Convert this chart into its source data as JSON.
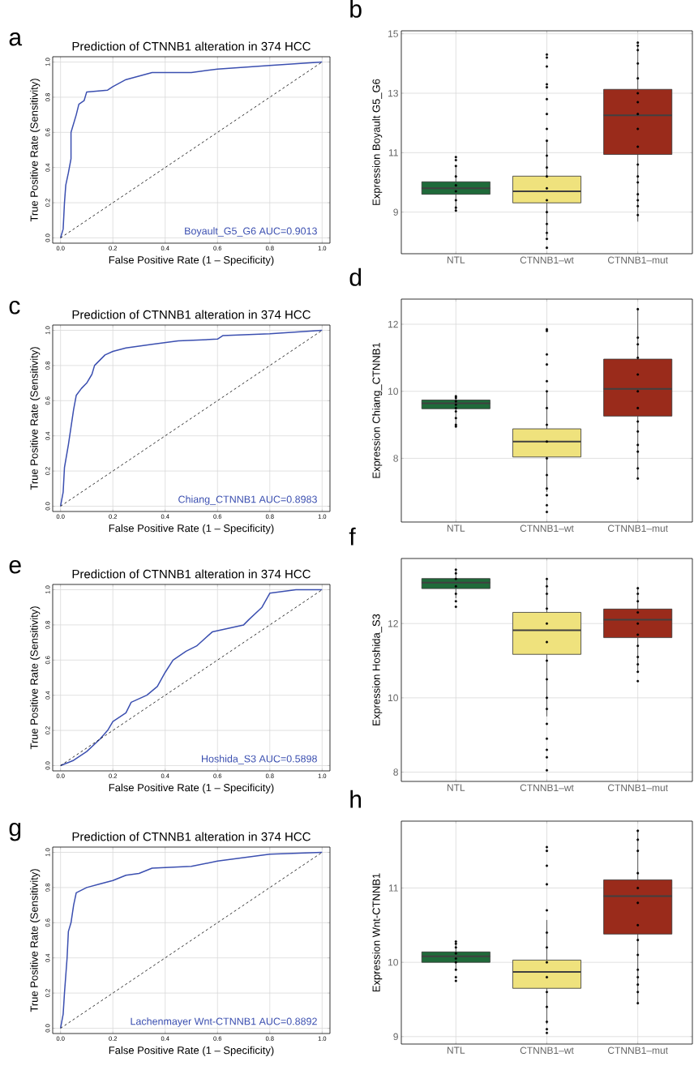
{
  "chart_data": [
    {
      "type": "line",
      "title": "Prediction of CTNNB1 alteration in 374 HCC",
      "xlabel": "False Positive Rate (1 – Specificity)",
      "ylabel": "True Positive Rate (Sensitivity)",
      "annotations": [
        "a",
        "Boyault_G5_G6 AUC=0.9013"
      ],
      "xlim": [
        -0.03,
        1.03
      ],
      "ylim": [
        -0.03,
        1.03
      ],
      "xticks": [
        {
          "value": 0,
          "label": "0.0"
        },
        {
          "value": 0.2,
          "label": "0.2"
        },
        {
          "value": 0.4,
          "label": "0.4"
        },
        {
          "value": 0.6,
          "label": "0.6"
        },
        {
          "value": 0.8,
          "label": "0.8"
        },
        {
          "value": 1,
          "label": "1.0"
        }
      ],
      "yticks": [
        {
          "value": 0,
          "label": "0.0"
        },
        {
          "value": 0.2,
          "label": "0.2"
        },
        {
          "value": 0.4,
          "label": "0.4"
        },
        {
          "value": 0.6,
          "label": "0.6"
        },
        {
          "value": 0.8,
          "label": "0.8"
        },
        {
          "value": 1,
          "label": "1.0"
        }
      ],
      "grid": true,
      "series": [
        {
          "color": "#3b4fb0",
          "x": [
            0,
            0.01,
            0.015,
            0.02,
            0.03,
            0.04,
            0.04,
            0.05,
            0.06,
            0.07,
            0.09,
            0.1,
            0.18,
            0.2,
            0.25,
            0.3,
            0.35,
            0.5,
            0.6,
            0.8,
            0.9,
            1
          ],
          "values": [
            0,
            0.05,
            0.2,
            0.3,
            0.37,
            0.45,
            0.6,
            0.65,
            0.7,
            0.76,
            0.78,
            0.83,
            0.84,
            0.86,
            0.9,
            0.92,
            0.94,
            0.94,
            0.96,
            0.98,
            0.99,
            1
          ]
        },
        {
          "color": "#000000",
          "line_style": "dashed",
          "x": [
            0,
            1
          ],
          "values": [
            0,
            1
          ]
        }
      ]
    },
    {
      "type": "box",
      "ylabel": "Expression Boyault G5_G6",
      "categories": [
        "NTL",
        "CTNNB1–wt",
        "CTNNB1–mut"
      ],
      "ylim": [
        7.6,
        15.1
      ],
      "yticks": [
        9,
        11,
        13,
        15
      ],
      "grid": true,
      "series": [
        {
          "type": "box",
          "colors": [
            "#1f6a3a",
            "#efe27d",
            "#9a2b1b"
          ],
          "boxes": [
            {
              "low": 9.05,
              "q1": 9.6,
              "median": 9.8,
              "q3": 10.02,
              "high": 10.55
            },
            {
              "low": 8.17,
              "q1": 9.31,
              "median": 9.7,
              "q3": 10.21,
              "high": 11.41
            },
            {
              "low": 8.68,
              "q1": 10.94,
              "median": 12.26,
              "q3": 13.13,
              "high": 14.6
            }
          ]
        },
        {
          "type": "scatter",
          "color": "#000000",
          "x": [
            "NTL",
            "NTL",
            "NTL",
            "NTL",
            "NTL",
            "NTL",
            "NTL",
            "NTL",
            "NTL",
            "CTNNB1–wt",
            "CTNNB1–wt",
            "CTNNB1–wt",
            "CTNNB1–wt",
            "CTNNB1–wt",
            "CTNNB1–wt",
            "CTNNB1–wt",
            "CTNNB1–wt",
            "CTNNB1–wt",
            "CTNNB1–wt",
            "CTNNB1–wt",
            "CTNNB1–wt",
            "CTNNB1–wt",
            "CTNNB1–wt",
            "CTNNB1–wt",
            "CTNNB1–wt",
            "CTNNB1–wt",
            "CTNNB1–wt",
            "CTNNB1–wt",
            "CTNNB1–mut",
            "CTNNB1–mut",
            "CTNNB1–mut",
            "CTNNB1–mut",
            "CTNNB1–mut",
            "CTNNB1–mut",
            "CTNNB1–mut",
            "CTNNB1–mut",
            "CTNNB1–mut",
            "CTNNB1–mut",
            "CTNNB1–mut",
            "CTNNB1–mut",
            "CTNNB1–mut",
            "CTNNB1–mut",
            "CTNNB1–mut",
            "CTNNB1–mut",
            "CTNNB1–mut"
          ],
          "values": [
            10.85,
            10.75,
            10.55,
            10.2,
            9.9,
            9.7,
            9.4,
            9.05,
            9.15,
            14.3,
            14.2,
            13.9,
            13.3,
            13.2,
            12.8,
            12.3,
            11.8,
            11.4,
            10.9,
            10.5,
            10.2,
            9.8,
            9.4,
            9.0,
            8.6,
            8.3,
            8.1,
            7.8,
            14.7,
            14.6,
            14.45,
            14.0,
            13.5,
            13.0,
            12.7,
            12.3,
            11.8,
            11.2,
            10.6,
            10.2,
            10.0,
            9.6,
            9.4,
            9.2,
            8.9
          ]
        }
      ],
      "annotations": [
        "b"
      ]
    },
    {
      "type": "line",
      "title": "Prediction of CTNNB1 alteration in 374 HCC",
      "xlabel": "False Positive Rate (1 – Specificity)",
      "ylabel": "True Positive Rate (Sensitivity)",
      "annotations": [
        "c",
        "Chiang_CTNNB1 AUC=0.8983"
      ],
      "xlim": [
        -0.03,
        1.03
      ],
      "ylim": [
        -0.03,
        1.03
      ],
      "xticks": [
        {
          "value": 0,
          "label": "0.0"
        },
        {
          "value": 0.2,
          "label": "0.2"
        },
        {
          "value": 0.4,
          "label": "0.4"
        },
        {
          "value": 0.6,
          "label": "0.6"
        },
        {
          "value": 0.8,
          "label": "0.8"
        },
        {
          "value": 1,
          "label": "1.0"
        }
      ],
      "yticks": [
        {
          "value": 0,
          "label": "0.0"
        },
        {
          "value": 0.2,
          "label": "0.2"
        },
        {
          "value": 0.4,
          "label": "0.4"
        },
        {
          "value": 0.6,
          "label": "0.6"
        },
        {
          "value": 0.8,
          "label": "0.8"
        },
        {
          "value": 1,
          "label": "1.0"
        }
      ],
      "grid": true,
      "series": [
        {
          "color": "#3b4fb0",
          "x": [
            0,
            0.01,
            0.015,
            0.03,
            0.04,
            0.05,
            0.06,
            0.08,
            0.1,
            0.12,
            0.13,
            0.17,
            0.2,
            0.25,
            0.35,
            0.45,
            0.6,
            0.62,
            0.8,
            1
          ],
          "values": [
            0,
            0.08,
            0.22,
            0.35,
            0.45,
            0.55,
            0.63,
            0.67,
            0.7,
            0.75,
            0.8,
            0.86,
            0.88,
            0.9,
            0.92,
            0.94,
            0.95,
            0.97,
            0.98,
            1
          ]
        },
        {
          "color": "#000000",
          "line_style": "dashed",
          "x": [
            0,
            1
          ],
          "values": [
            0,
            1
          ]
        }
      ]
    },
    {
      "type": "box",
      "ylabel": "Expression Chiang_CTNNB1",
      "categories": [
        "NTL",
        "CTNNB1–wt",
        "CTNNB1–mut"
      ],
      "ylim": [
        6.1,
        12.75
      ],
      "yticks": [
        8,
        10,
        12
      ],
      "grid": true,
      "series": [
        {
          "type": "box",
          "colors": [
            "#1f6a3a",
            "#efe27d",
            "#9a2b1b"
          ],
          "boxes": [
            {
              "low": 9.0,
              "q1": 9.48,
              "median": 9.64,
              "q3": 9.74,
              "high": 9.85
            },
            {
              "low": 7.0,
              "q1": 8.04,
              "median": 8.5,
              "q3": 8.88,
              "high": 9.97
            },
            {
              "low": 7.36,
              "q1": 9.26,
              "median": 10.07,
              "q3": 10.96,
              "high": 12.46
            }
          ]
        },
        {
          "type": "scatter",
          "color": "#000000",
          "x": [
            "NTL",
            "NTL",
            "NTL",
            "NTL",
            "NTL",
            "NTL",
            "NTL",
            "NTL",
            "NTL",
            "CTNNB1–wt",
            "CTNNB1–wt",
            "CTNNB1–wt",
            "CTNNB1–wt",
            "CTNNB1–wt",
            "CTNNB1–wt",
            "CTNNB1–wt",
            "CTNNB1–wt",
            "CTNNB1–wt",
            "CTNNB1–wt",
            "CTNNB1–wt",
            "CTNNB1–wt",
            "CTNNB1–wt",
            "CTNNB1–wt",
            "CTNNB1–wt",
            "CTNNB1–mut",
            "CTNNB1–mut",
            "CTNNB1–mut",
            "CTNNB1–mut",
            "CTNNB1–mut",
            "CTNNB1–mut",
            "CTNNB1–mut",
            "CTNNB1–mut",
            "CTNNB1–mut",
            "CTNNB1–mut",
            "CTNNB1–mut",
            "CTNNB1–mut",
            "CTNNB1–mut"
          ],
          "values": [
            9.85,
            9.8,
            9.7,
            9.6,
            9.5,
            9.4,
            9.2,
            9.0,
            8.95,
            11.85,
            11.8,
            11.1,
            10.8,
            10.3,
            10.0,
            9.5,
            9.0,
            8.5,
            8.0,
            7.5,
            7.1,
            6.9,
            6.6,
            6.4,
            12.45,
            11.6,
            11.4,
            11.0,
            10.5,
            10.0,
            9.5,
            9.1,
            8.8,
            8.4,
            8.2,
            7.7,
            7.4
          ]
        }
      ],
      "annotations": [
        "d"
      ]
    },
    {
      "type": "line",
      "title": "Prediction of CTNNB1 alteration in 374 HCC",
      "xlabel": "False Positive Rate (1 – Specificity)",
      "ylabel": "True Positive Rate (Sensitivity)",
      "annotations": [
        "e",
        "Hoshida_S3 AUC=0.5898"
      ],
      "xlim": [
        -0.03,
        1.03
      ],
      "ylim": [
        -0.03,
        1.03
      ],
      "xticks": [
        {
          "value": 0,
          "label": "0.0"
        },
        {
          "value": 0.2,
          "label": "0.2"
        },
        {
          "value": 0.4,
          "label": "0.4"
        },
        {
          "value": 0.6,
          "label": "0.6"
        },
        {
          "value": 0.8,
          "label": "0.8"
        },
        {
          "value": 1,
          "label": "1.0"
        }
      ],
      "yticks": [
        {
          "value": 0,
          "label": "0.0"
        },
        {
          "value": 0.2,
          "label": "0.2"
        },
        {
          "value": 0.4,
          "label": "0.4"
        },
        {
          "value": 0.6,
          "label": "0.6"
        },
        {
          "value": 0.8,
          "label": "0.8"
        },
        {
          "value": 1,
          "label": "1.0"
        }
      ],
      "grid": true,
      "series": [
        {
          "color": "#3b4fb0",
          "x": [
            0,
            0.05,
            0.1,
            0.15,
            0.18,
            0.2,
            0.25,
            0.27,
            0.33,
            0.37,
            0.4,
            0.43,
            0.48,
            0.52,
            0.58,
            0.7,
            0.72,
            0.77,
            0.8,
            0.9,
            1
          ],
          "values": [
            0,
            0.03,
            0.08,
            0.15,
            0.2,
            0.25,
            0.3,
            0.36,
            0.4,
            0.45,
            0.53,
            0.6,
            0.65,
            0.68,
            0.76,
            0.8,
            0.83,
            0.9,
            0.98,
            1,
            1
          ]
        },
        {
          "color": "#000000",
          "line_style": "dashed",
          "x": [
            0,
            1
          ],
          "values": [
            0,
            1
          ]
        }
      ]
    },
    {
      "type": "box",
      "ylabel": "Expression Hoshida_S3",
      "categories": [
        "NTL",
        "CTNNB1–wt",
        "CTNNB1–mut"
      ],
      "ylim": [
        7.75,
        13.75
      ],
      "yticks": [
        8,
        10,
        12
      ],
      "grid": true,
      "series": [
        {
          "type": "box",
          "colors": [
            "#1f6a3a",
            "#efe27d",
            "#9a2b1b"
          ],
          "boxes": [
            {
              "low": 12.68,
              "q1": 12.94,
              "median": 13.1,
              "q3": 13.21,
              "high": 13.46
            },
            {
              "low": 9.5,
              "q1": 11.17,
              "median": 11.82,
              "q3": 12.3,
              "high": 13.19
            },
            {
              "low": 10.69,
              "q1": 11.62,
              "median": 12.1,
              "q3": 12.39,
              "high": 12.95
            }
          ]
        },
        {
          "type": "scatter",
          "color": "#000000",
          "x": [
            "NTL",
            "NTL",
            "NTL",
            "NTL",
            "NTL",
            "NTL",
            "NTL",
            "CTNNB1–wt",
            "CTNNB1–wt",
            "CTNNB1–wt",
            "CTNNB1–wt",
            "CTNNB1–wt",
            "CTNNB1–wt",
            "CTNNB1–wt",
            "CTNNB1–wt",
            "CTNNB1–wt",
            "CTNNB1–wt",
            "CTNNB1–wt",
            "CTNNB1–wt",
            "CTNNB1–wt",
            "CTNNB1–wt",
            "CTNNB1–wt",
            "CTNNB1–mut",
            "CTNNB1–mut",
            "CTNNB1–mut",
            "CTNNB1–mut",
            "CTNNB1–mut",
            "CTNNB1–mut",
            "CTNNB1–mut",
            "CTNNB1–mut",
            "CTNNB1–mut",
            "CTNNB1–mut",
            "CTNNB1–mut"
          ],
          "values": [
            13.45,
            13.35,
            13.2,
            13.0,
            12.8,
            12.6,
            12.45,
            13.2,
            13.0,
            12.8,
            12.4,
            12.0,
            11.5,
            11.0,
            10.5,
            10.0,
            9.7,
            9.3,
            8.9,
            8.6,
            8.4,
            8.05,
            12.95,
            12.8,
            12.6,
            12.3,
            12.0,
            11.7,
            11.4,
            11.1,
            10.9,
            10.7,
            10.45
          ]
        }
      ],
      "annotations": [
        "f"
      ]
    },
    {
      "type": "line",
      "title": "Prediction of CTNNB1 alteration in 374 HCC",
      "xlabel": "False Positive Rate (1 – Specificity)",
      "ylabel": "True Positive Rate (Sensitivity)",
      "annotations": [
        "g",
        "Lachenmayer Wnt-CTNNB1 AUC=0.8892"
      ],
      "xlim": [
        -0.03,
        1.03
      ],
      "ylim": [
        -0.03,
        1.03
      ],
      "xticks": [
        {
          "value": 0,
          "label": "0.0"
        },
        {
          "value": 0.2,
          "label": "0.2"
        },
        {
          "value": 0.4,
          "label": "0.4"
        },
        {
          "value": 0.6,
          "label": "0.6"
        },
        {
          "value": 0.8,
          "label": "0.8"
        },
        {
          "value": 1,
          "label": "1.0"
        }
      ],
      "yticks": [
        {
          "value": 0,
          "label": "0.0"
        },
        {
          "value": 0.2,
          "label": "0.2"
        },
        {
          "value": 0.4,
          "label": "0.4"
        },
        {
          "value": 0.6,
          "label": "0.6"
        },
        {
          "value": 0.8,
          "label": "0.8"
        },
        {
          "value": 1,
          "label": "1.0"
        }
      ],
      "grid": true,
      "series": [
        {
          "color": "#3b4fb0",
          "x": [
            0,
            0.01,
            0.015,
            0.025,
            0.03,
            0.04,
            0.05,
            0.06,
            0.1,
            0.15,
            0.2,
            0.25,
            0.3,
            0.35,
            0.5,
            0.6,
            0.8,
            1
          ],
          "values": [
            0,
            0.08,
            0.2,
            0.4,
            0.55,
            0.6,
            0.7,
            0.77,
            0.8,
            0.82,
            0.84,
            0.87,
            0.88,
            0.91,
            0.92,
            0.95,
            0.99,
            1
          ]
        },
        {
          "color": "#000000",
          "line_style": "dashed",
          "x": [
            0,
            1
          ],
          "values": [
            0,
            1
          ]
        }
      ]
    },
    {
      "type": "box",
      "ylabel": "Expression Wnt-CTNNB1",
      "categories": [
        "NTL",
        "CTNNB1–wt",
        "CTNNB1–mut"
      ],
      "ylim": [
        8.9,
        11.9
      ],
      "yticks": [
        9,
        10,
        11
      ],
      "grid": true,
      "series": [
        {
          "type": "box",
          "colors": [
            "#1f6a3a",
            "#efe27d",
            "#9a2b1b"
          ],
          "boxes": [
            {
              "low": 9.9,
              "q1": 10.0,
              "median": 10.08,
              "q3": 10.14,
              "high": 10.25
            },
            {
              "low": 9.17,
              "q1": 9.65,
              "median": 9.87,
              "q3": 10.03,
              "high": 10.57
            },
            {
              "low": 9.44,
              "q1": 10.38,
              "median": 10.89,
              "q3": 11.11,
              "high": 11.77
            }
          ]
        },
        {
          "type": "scatter",
          "color": "#000000",
          "x": [
            "NTL",
            "NTL",
            "NTL",
            "NTL",
            "NTL",
            "NTL",
            "NTL",
            "NTL",
            "NTL",
            "CTNNB1–wt",
            "CTNNB1–wt",
            "CTNNB1–wt",
            "CTNNB1–wt",
            "CTNNB1–wt",
            "CTNNB1–wt",
            "CTNNB1–wt",
            "CTNNB1–wt",
            "CTNNB1–wt",
            "CTNNB1–wt",
            "CTNNB1–wt",
            "CTNNB1–wt",
            "CTNNB1–wt",
            "CTNNB1–wt",
            "CTNNB1–mut",
            "CTNNB1–mut",
            "CTNNB1–mut",
            "CTNNB1–mut",
            "CTNNB1–mut",
            "CTNNB1–mut",
            "CTNNB1–mut",
            "CTNNB1–mut",
            "CTNNB1–mut",
            "CTNNB1–mut",
            "CTNNB1–mut",
            "CTNNB1–mut",
            "CTNNB1–mut",
            "CTNNB1–mut"
          ],
          "values": [
            10.28,
            10.25,
            10.2,
            10.12,
            10.05,
            10.0,
            9.9,
            9.8,
            9.75,
            11.55,
            11.5,
            11.3,
            11.05,
            10.7,
            10.4,
            10.2,
            10.0,
            9.8,
            9.6,
            9.4,
            9.2,
            9.1,
            9.05,
            11.77,
            11.65,
            11.5,
            11.2,
            11.0,
            10.8,
            10.5,
            10.3,
            10.1,
            9.9,
            9.8,
            9.7,
            9.6,
            9.45
          ]
        }
      ],
      "annotations": [
        "h"
      ]
    }
  ]
}
